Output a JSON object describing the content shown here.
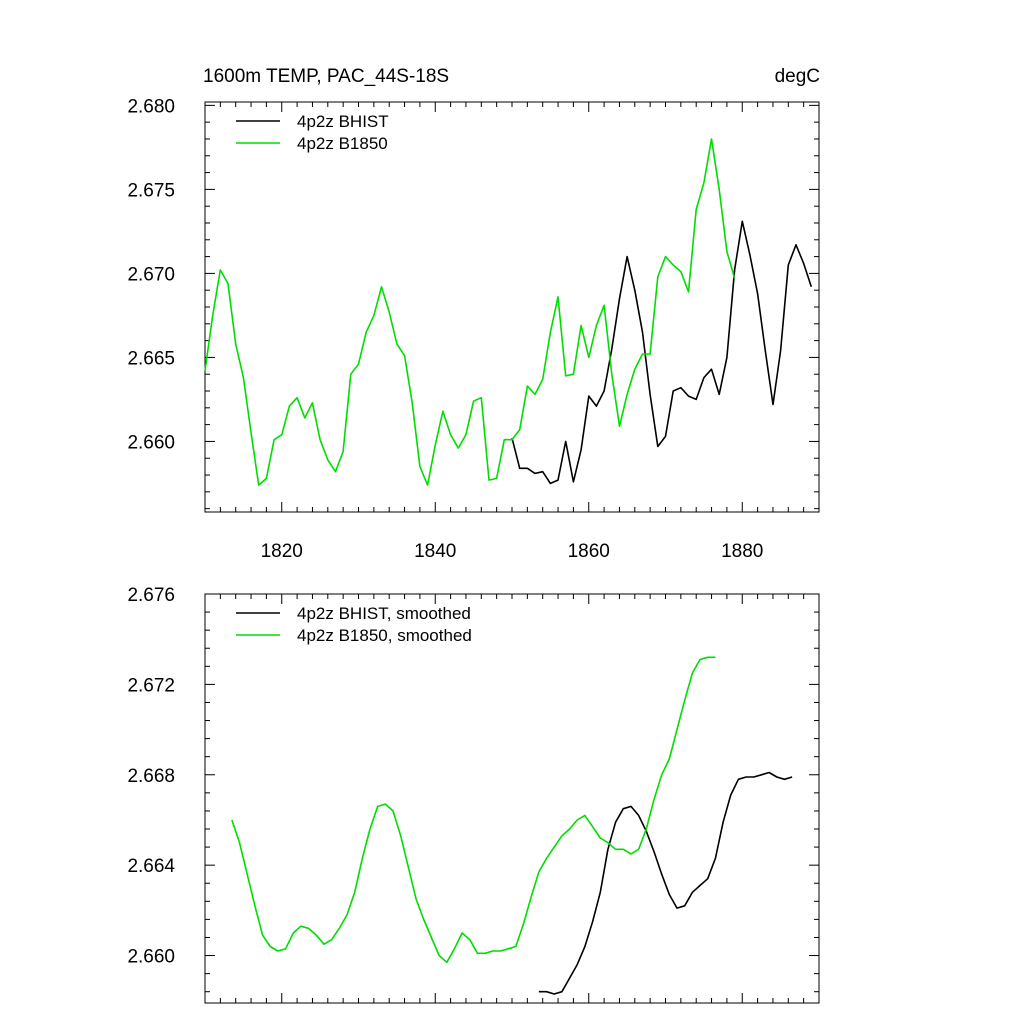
{
  "header": {
    "left": "1600m TEMP, PAC_44S-18S",
    "right": "degC"
  },
  "chart_data": [
    {
      "type": "line",
      "title": "1600m TEMP, PAC_44S-18S",
      "units": "degC",
      "xlim": [
        1810,
        1890
      ],
      "ylim": [
        2.6558,
        2.6802
      ],
      "x_ticks": [
        1820,
        1840,
        1860,
        1880
      ],
      "y_ticks": [
        2.66,
        2.665,
        2.67,
        2.675,
        2.68
      ],
      "y_tick_labels": [
        "2.660",
        "2.665",
        "2.670",
        "2.675",
        "2.680"
      ],
      "legend_position": "top-left",
      "series": [
        {
          "name": "4p2z BHIST",
          "color": "#000000",
          "x": [
            1850,
            1851,
            1852,
            1853,
            1854,
            1855,
            1856,
            1857,
            1858,
            1859,
            1860,
            1861,
            1862,
            1863,
            1864,
            1865,
            1866,
            1867,
            1868,
            1869,
            1870,
            1871,
            1872,
            1873,
            1874,
            1875,
            1876,
            1877,
            1878,
            1879,
            1880,
            1881,
            1882,
            1883,
            1884,
            1885,
            1886,
            1887,
            1888,
            1889
          ],
          "y": [
            2.6602,
            2.6584,
            2.6584,
            2.6581,
            2.6582,
            2.6575,
            2.6577,
            2.66,
            2.6576,
            2.6595,
            2.6627,
            2.6621,
            2.663,
            2.6655,
            2.6685,
            2.671,
            2.669,
            2.6665,
            2.6628,
            2.6597,
            2.6603,
            2.663,
            2.6632,
            2.6627,
            2.6625,
            2.6638,
            2.6643,
            2.6628,
            2.665,
            2.6702,
            2.6731,
            2.6711,
            2.6688,
            2.6654,
            2.6622,
            2.6654,
            2.6705,
            2.6717,
            2.6706,
            2.6692
          ]
        },
        {
          "name": "4p2z B1850",
          "color": "#00dd00",
          "x": [
            1810,
            1811,
            1812,
            1813,
            1814,
            1815,
            1816,
            1817,
            1818,
            1819,
            1820,
            1821,
            1822,
            1823,
            1824,
            1825,
            1826,
            1827,
            1828,
            1829,
            1830,
            1831,
            1832,
            1833,
            1834,
            1835,
            1836,
            1837,
            1838,
            1839,
            1840,
            1841,
            1842,
            1843,
            1844,
            1845,
            1846,
            1847,
            1848,
            1849,
            1850,
            1851,
            1852,
            1853,
            1854,
            1855,
            1856,
            1857,
            1858,
            1859,
            1860,
            1861,
            1862,
            1863,
            1864,
            1865,
            1866,
            1867,
            1868,
            1869,
            1870,
            1871,
            1872,
            1873,
            1874,
            1875,
            1876,
            1877,
            1878,
            1879
          ],
          "y": [
            2.6642,
            2.6675,
            2.6702,
            2.6694,
            2.6658,
            2.6638,
            2.6605,
            2.6574,
            2.6578,
            2.6601,
            2.6604,
            2.6621,
            2.6626,
            2.6614,
            2.6623,
            2.6601,
            2.6589,
            2.6582,
            2.6594,
            2.664,
            2.6646,
            2.6665,
            2.6675,
            2.6692,
            2.6677,
            2.6658,
            2.6651,
            2.6623,
            2.6585,
            2.6574,
            2.6598,
            2.6618,
            2.6604,
            2.6596,
            2.6604,
            2.6624,
            2.6626,
            2.6577,
            2.6578,
            2.6601,
            2.6601,
            2.6607,
            2.6633,
            2.6628,
            2.6637,
            2.6665,
            2.6686,
            2.6639,
            2.664,
            2.6669,
            2.665,
            2.6669,
            2.6681,
            2.664,
            2.6609,
            2.6628,
            2.6643,
            2.6652,
            2.6652,
            2.6698,
            2.671,
            2.6705,
            2.6701,
            2.6689,
            2.6738,
            2.6754,
            2.678,
            2.675,
            2.6713,
            2.6697
          ]
        }
      ]
    },
    {
      "type": "line",
      "xlim": [
        1810,
        1890
      ],
      "ylim": [
        2.6579,
        2.676
      ],
      "x_ticks": [
        1820,
        1840,
        1860,
        1880
      ],
      "y_ticks": [
        2.66,
        2.664,
        2.668,
        2.672,
        2.676
      ],
      "y_tick_labels": [
        "2.660",
        "2.664",
        "2.668",
        "2.672",
        "2.676"
      ],
      "legend_position": "top-left",
      "series": [
        {
          "name": "4p2z BHIST, smoothed",
          "color": "#000000",
          "x": [
            1853.5,
            1854.5,
            1855.5,
            1856.5,
            1857.5,
            1858.5,
            1859.5,
            1860.5,
            1861.5,
            1862.5,
            1863.5,
            1864.5,
            1865.5,
            1866.5,
            1867.5,
            1868.5,
            1869.5,
            1870.5,
            1871.5,
            1872.5,
            1873.5,
            1874.5,
            1875.5,
            1876.5,
            1877.5,
            1878.5,
            1879.5,
            1880.5,
            1881.5,
            1882.5,
            1883.5,
            1884.5,
            1885.5,
            1886.5
          ],
          "y": [
            2.6584,
            2.6584,
            2.6583,
            2.6584,
            2.659,
            2.6596,
            2.6604,
            2.6615,
            2.6628,
            2.6647,
            2.6659,
            2.6665,
            2.6666,
            2.6662,
            2.6655,
            2.6646,
            2.6636,
            2.6627,
            2.6621,
            2.6622,
            2.6628,
            2.6631,
            2.6634,
            2.6643,
            2.6659,
            2.6671,
            2.6678,
            2.6679,
            2.6679,
            2.668,
            2.6681,
            2.6679,
            2.6678,
            2.6679
          ]
        },
        {
          "name": "4p2z B1850, smoothed",
          "color": "#00dd00",
          "x": [
            1813.5,
            1814.5,
            1815.5,
            1816.5,
            1817.5,
            1818.5,
            1819.5,
            1820.5,
            1821.5,
            1822.5,
            1823.5,
            1824.5,
            1825.5,
            1826.5,
            1827.5,
            1828.5,
            1829.5,
            1830.5,
            1831.5,
            1832.5,
            1833.5,
            1834.5,
            1835.5,
            1836.5,
            1837.5,
            1838.5,
            1839.5,
            1840.5,
            1841.5,
            1842.5,
            1843.5,
            1844.5,
            1845.5,
            1846.5,
            1847.5,
            1848.5,
            1849.5,
            1850.5,
            1851.5,
            1852.5,
            1853.5,
            1854.5,
            1855.5,
            1856.5,
            1857.5,
            1858.5,
            1859.5,
            1860.5,
            1861.5,
            1862.5,
            1863.5,
            1864.5,
            1865.5,
            1866.5,
            1867.5,
            1868.5,
            1869.5,
            1870.5,
            1871.5,
            1872.5,
            1873.5,
            1874.5,
            1875.5,
            1876.5
          ],
          "y": [
            2.666,
            2.665,
            2.6636,
            2.6622,
            2.6609,
            2.6604,
            2.6602,
            2.6603,
            2.661,
            2.6613,
            2.6612,
            2.6609,
            2.6605,
            2.6607,
            2.6612,
            2.6618,
            2.6628,
            2.6643,
            2.6656,
            2.6666,
            2.6667,
            2.6664,
            2.6653,
            2.6639,
            2.6625,
            2.6616,
            2.6608,
            2.66,
            2.6597,
            2.6603,
            2.661,
            2.6607,
            2.6601,
            2.6601,
            2.6602,
            2.6602,
            2.6603,
            2.6604,
            2.6614,
            2.6626,
            2.6637,
            2.6643,
            2.6648,
            2.6653,
            2.6656,
            2.666,
            2.6662,
            2.6657,
            2.6652,
            2.665,
            2.6647,
            2.6647,
            2.6645,
            2.6647,
            2.6656,
            2.6669,
            2.668,
            2.6687,
            2.67,
            2.6713,
            2.6725,
            2.6731,
            2.6732,
            2.6732
          ]
        }
      ]
    }
  ]
}
